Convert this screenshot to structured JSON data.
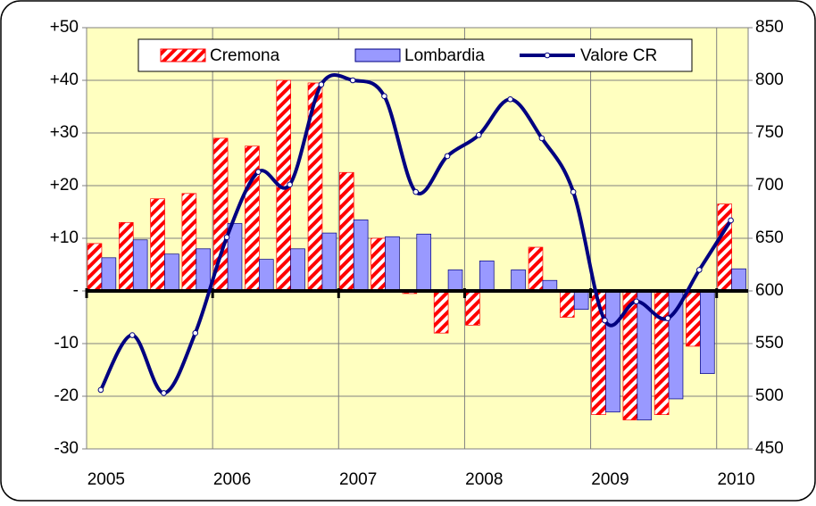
{
  "chart_data": {
    "type": "bar",
    "categories": [
      "2005",
      null,
      null,
      null,
      "2006",
      null,
      null,
      null,
      "2007",
      null,
      null,
      null,
      "2008",
      null,
      null,
      null,
      "2009",
      null,
      null,
      null,
      "2010"
    ],
    "series": [
      {
        "name": "Cremona",
        "color": "#ff0000",
        "values": [
          9,
          13,
          17.5,
          18.5,
          29,
          27.5,
          40,
          39.5,
          22.5,
          10,
          -0.5,
          -8,
          -6.5,
          0,
          8.3,
          -5,
          -23.5,
          -24.5,
          -23.5,
          -10.5,
          16.5
        ]
      },
      {
        "name": "Lombardia",
        "color": "#9999ff",
        "values": [
          6.3,
          9.7,
          7,
          8,
          12.8,
          6,
          8,
          11,
          13.5,
          10.3,
          10.8,
          4,
          5.7,
          4,
          2,
          -3.5,
          -23,
          -24.5,
          -20.5,
          -15.7,
          4.2
        ]
      },
      {
        "name": "Valore CR",
        "type": "line",
        "axis": "y2",
        "color": "#000080",
        "values": [
          506,
          558,
          503,
          560,
          651,
          713,
          701,
          796,
          800,
          785,
          694,
          728,
          748,
          782,
          745,
          694,
          572,
          590,
          574,
          620,
          667
        ]
      }
    ],
    "ylim": [
      -30,
      50
    ],
    "yticks": [
      {
        "value": 50,
        "label": "+50"
      },
      {
        "value": 40,
        "label": "+40"
      },
      {
        "value": 30,
        "label": "+30"
      },
      {
        "value": 20,
        "label": "+20"
      },
      {
        "value": 10,
        "label": "+10"
      },
      {
        "value": 0,
        "label": "-"
      },
      -10,
      -20,
      -30
    ],
    "y2lim": [
      450,
      850
    ],
    "y2ticks": [
      850,
      800,
      750,
      700,
      650,
      600,
      550,
      500,
      450
    ],
    "grid": true
  }
}
